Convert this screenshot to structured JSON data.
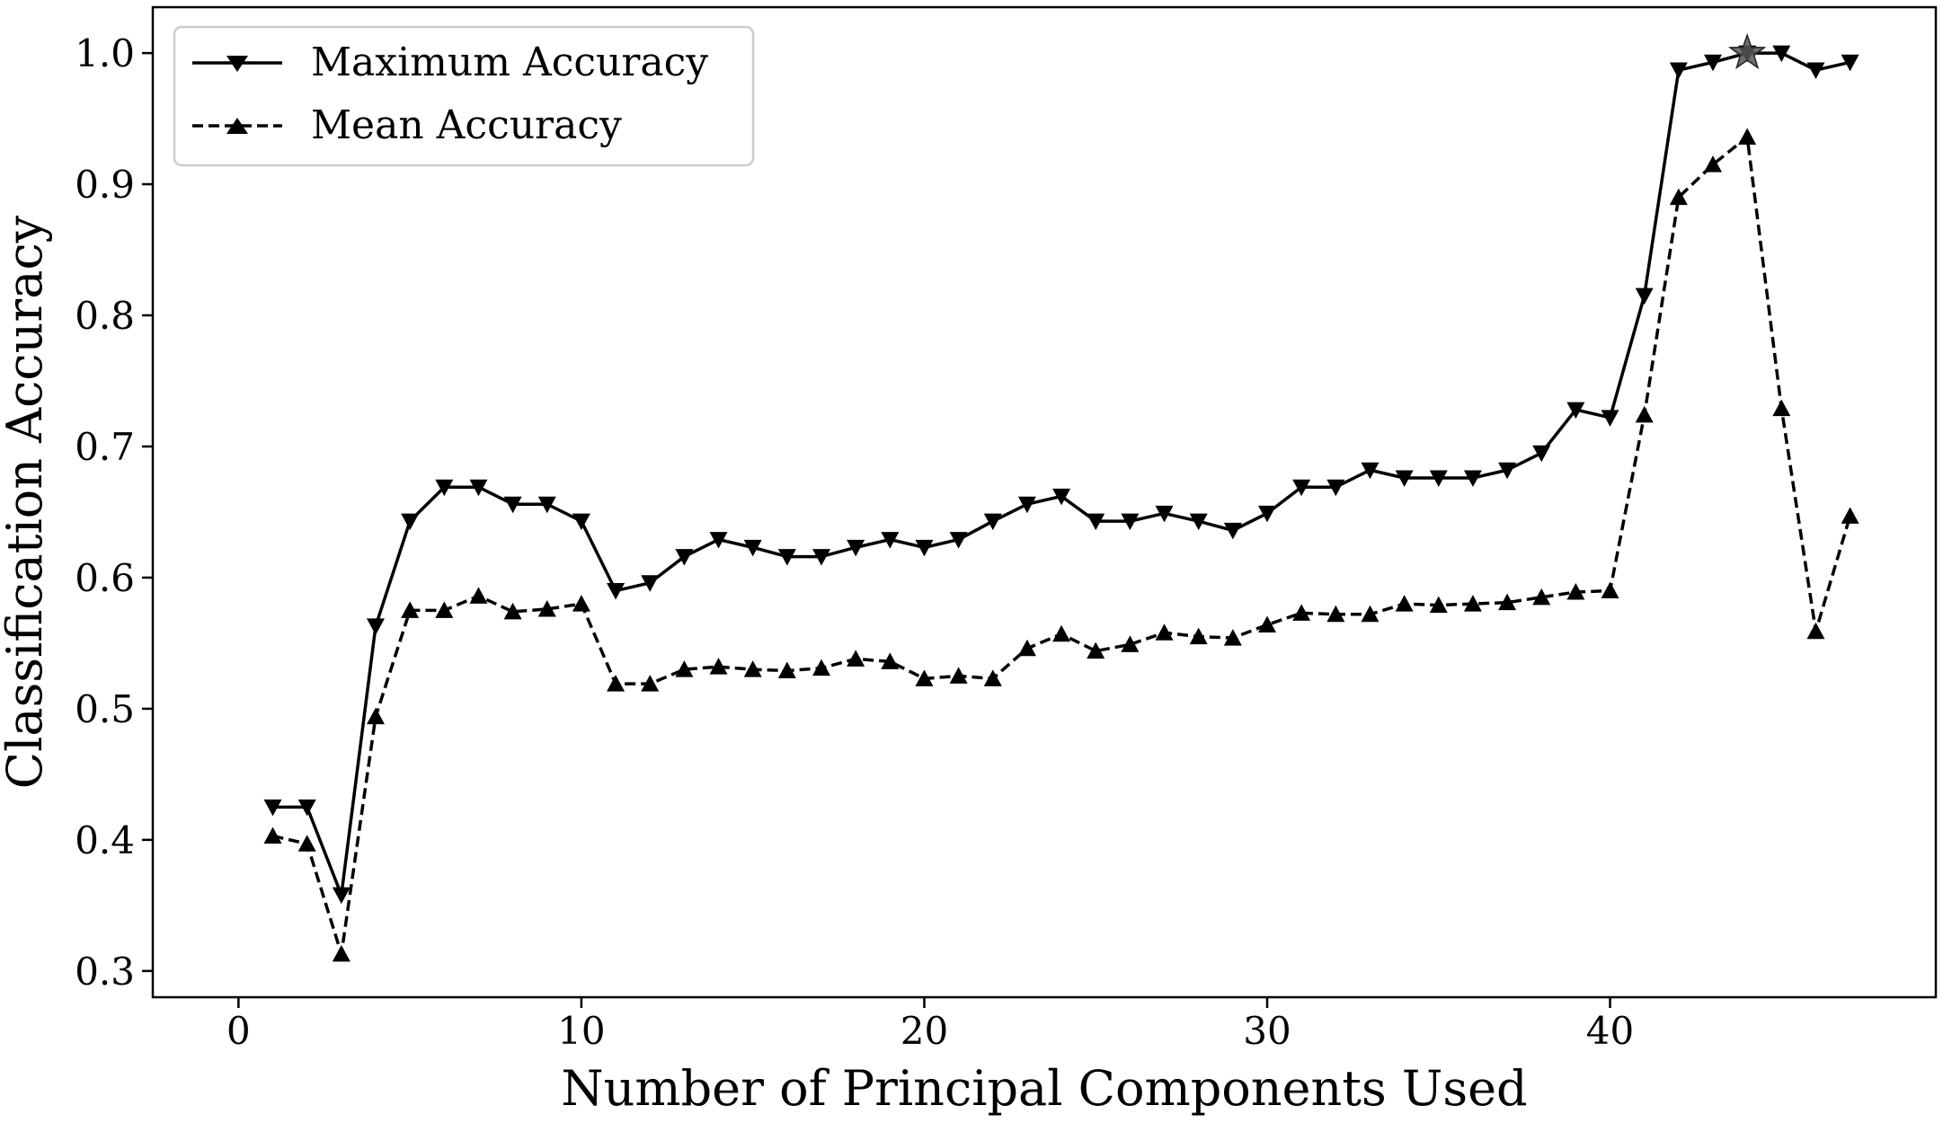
{
  "chart_data": {
    "type": "line",
    "xlabel": "Number of Principal Components Used",
    "ylabel": "Classification Accuracy",
    "xlim": [
      -2.5,
      49.5
    ],
    "ylim": [
      0.28,
      1.035
    ],
    "xticks": [
      0,
      10,
      20,
      30,
      40
    ],
    "xtick_labels": [
      "0",
      "10",
      "20",
      "30",
      "40"
    ],
    "yticks": [
      0.3,
      0.4,
      0.5,
      0.6,
      0.7,
      0.8,
      0.9,
      1.0
    ],
    "ytick_labels": [
      "0.3",
      "0.4",
      "0.5",
      "0.6",
      "0.7",
      "0.8",
      "0.9",
      "1.0"
    ],
    "grid": false,
    "legend_position": "top-left",
    "x": [
      1,
      2,
      3,
      4,
      5,
      6,
      7,
      8,
      9,
      10,
      11,
      12,
      13,
      14,
      15,
      16,
      17,
      18,
      19,
      20,
      21,
      22,
      23,
      24,
      25,
      26,
      27,
      28,
      29,
      30,
      31,
      32,
      33,
      34,
      35,
      36,
      37,
      38,
      39,
      40,
      41,
      42,
      43,
      44,
      45,
      46,
      47
    ],
    "series": [
      {
        "name": "Maximum Accuracy",
        "line_style": "solid",
        "marker": "triangle-down",
        "color": "#000000",
        "values": [
          0.425,
          0.425,
          0.358,
          0.563,
          0.643,
          0.669,
          0.669,
          0.656,
          0.656,
          0.643,
          0.59,
          0.596,
          0.616,
          0.629,
          0.623,
          0.616,
          0.616,
          0.623,
          0.629,
          0.623,
          0.629,
          0.643,
          0.656,
          0.662,
          0.643,
          0.643,
          0.649,
          0.643,
          0.636,
          0.649,
          0.669,
          0.669,
          0.682,
          0.676,
          0.676,
          0.676,
          0.682,
          0.695,
          0.728,
          0.722,
          0.815,
          0.987,
          0.993,
          1.0,
          1.0,
          0.987,
          0.993
        ]
      },
      {
        "name": "Mean Accuracy",
        "line_style": "dashed",
        "marker": "triangle-up",
        "color": "#000000",
        "values": [
          0.403,
          0.397,
          0.313,
          0.494,
          0.575,
          0.575,
          0.586,
          0.574,
          0.576,
          0.58,
          0.519,
          0.519,
          0.53,
          0.532,
          0.53,
          0.529,
          0.531,
          0.538,
          0.536,
          0.523,
          0.525,
          0.523,
          0.546,
          0.557,
          0.544,
          0.549,
          0.558,
          0.555,
          0.554,
          0.564,
          0.573,
          0.572,
          0.572,
          0.58,
          0.579,
          0.58,
          0.581,
          0.585,
          0.589,
          0.59,
          0.724,
          0.89,
          0.915,
          0.936,
          0.729,
          0.559,
          0.647
        ]
      }
    ],
    "highlight": {
      "marker": "star",
      "x": 44,
      "y": 1.0,
      "color": "#555555"
    }
  }
}
